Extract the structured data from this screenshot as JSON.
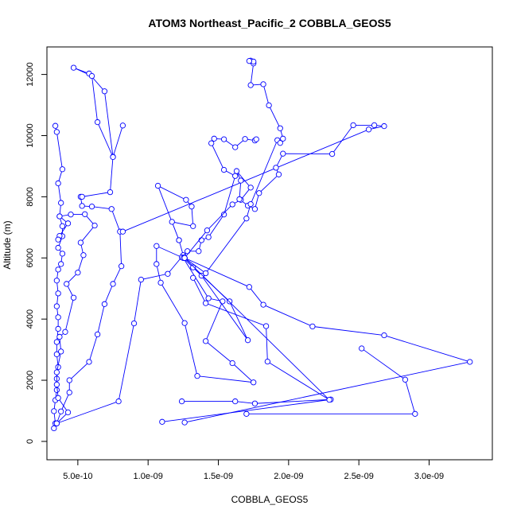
{
  "chart_data": {
    "type": "line",
    "title": "ATOM3 Northeast_Pacific_2 COBBLA_GEOS5",
    "xlabel": "COBBLA_GEOS5",
    "ylabel": "Altitude (m)",
    "xlim": [
      2.8e-10,
      3.45e-09
    ],
    "ylim": [
      -600,
      12900
    ],
    "x_ticks": [
      {
        "value": 5e-10,
        "label": "5.0e-10"
      },
      {
        "value": 1e-09,
        "label": "1.0e-09"
      },
      {
        "value": 1.5e-09,
        "label": "1.5e-09"
      },
      {
        "value": 2e-09,
        "label": "2.0e-09"
      },
      {
        "value": 2.5e-09,
        "label": "2.5e-09"
      },
      {
        "value": 3e-09,
        "label": "3.0e-09"
      }
    ],
    "y_ticks": [
      {
        "value": 0,
        "label": "0"
      },
      {
        "value": 2000,
        "label": "2000"
      },
      {
        "value": 4000,
        "label": "4000"
      },
      {
        "value": 6000,
        "label": "6000"
      },
      {
        "value": 8000,
        "label": "8000"
      },
      {
        "value": 10000,
        "label": "10000"
      },
      {
        "value": 12000,
        "label": "12000"
      }
    ],
    "grid": false,
    "legend": "none",
    "series_color": "#0000ff",
    "series": [
      {
        "points": [
          [
            3.3e-10,
            430
          ],
          [
            3.4e-10,
            590
          ],
          [
            3.3e-10,
            990
          ],
          [
            3.4e-10,
            1350
          ],
          [
            3.5e-10,
            1680
          ],
          [
            3.5e-10,
            2050
          ],
          [
            3.6e-10,
            2430
          ],
          [
            3.5e-10,
            2850
          ],
          [
            3.5e-10,
            3250
          ],
          [
            3.6e-10,
            3680
          ],
          [
            3.6e-10,
            4060
          ],
          [
            3.5e-10,
            4420
          ],
          [
            3.6e-10,
            4840
          ],
          [
            3.5e-10,
            5260
          ],
          [
            3.6e-10,
            5620
          ],
          [
            3.8e-10,
            5800
          ],
          [
            3.9e-10,
            6140
          ],
          [
            3.6e-10,
            6330
          ],
          [
            3.9e-10,
            6710
          ],
          [
            3.9e-10,
            7040
          ],
          [
            3.7e-10,
            7360
          ],
          [
            3.8e-10,
            7800
          ],
          [
            3.6e-10,
            8440
          ],
          [
            3.9e-10,
            8900
          ],
          [
            3.5e-10,
            10120
          ],
          [
            3.4e-10,
            10320
          ]
        ]
      },
      {
        "points": [
          [
            3.5e-10,
            590
          ],
          [
            4.3e-10,
            950
          ],
          [
            3.6e-10,
            1420
          ],
          [
            3.5e-10,
            1860
          ],
          [
            3.5e-10,
            2260
          ],
          [
            3.8e-10,
            2940
          ],
          [
            3.7e-10,
            3420
          ],
          [
            4.1e-10,
            3580
          ],
          [
            4.7e-10,
            4700
          ],
          [
            4.2e-10,
            5150
          ],
          [
            5e-10,
            5520
          ],
          [
            5.4e-10,
            6090
          ],
          [
            5.2e-10,
            6500
          ],
          [
            6.2e-10,
            7060
          ],
          [
            5.5e-10,
            7430
          ],
          [
            4.5e-10,
            7420
          ],
          [
            3.7e-10,
            7360
          ],
          [
            4.3e-10,
            7130
          ],
          [
            3.7e-10,
            6720
          ],
          [
            3.6e-10,
            6600
          ]
        ]
      },
      {
        "points": [
          [
            3.5e-10,
            590
          ],
          [
            3.8e-10,
            980
          ],
          [
            4.4e-10,
            1600
          ],
          [
            4.4e-10,
            2000
          ],
          [
            5.8e-10,
            2600
          ],
          [
            6.4e-10,
            3500
          ],
          [
            6.9e-10,
            4490
          ],
          [
            7.5e-10,
            5150
          ],
          [
            8.1e-10,
            5730
          ],
          [
            8e-10,
            6860
          ],
          [
            7.4e-10,
            7600
          ],
          [
            6e-10,
            7680
          ],
          [
            5.3e-10,
            7700
          ],
          [
            5.2e-10,
            8000
          ],
          [
            5.3e-10,
            8000
          ],
          [
            7.3e-10,
            8150
          ],
          [
            7.5e-10,
            9310
          ],
          [
            6.9e-10,
            11450
          ],
          [
            5.8e-10,
            12030
          ],
          [
            4.7e-10,
            12220
          ],
          [
            6e-10,
            11950
          ],
          [
            6.4e-10,
            10440
          ],
          [
            7.5e-10,
            9300
          ],
          [
            8.2e-10,
            10330
          ]
        ]
      },
      {
        "points": [
          [
            3.5e-10,
            590
          ],
          [
            7.9e-10,
            1310
          ],
          [
            9e-10,
            3860
          ],
          [
            9.5e-10,
            5290
          ],
          [
            1.14e-09,
            5480
          ],
          [
            1.25e-09,
            6090
          ],
          [
            1.22e-09,
            6580
          ],
          [
            1.07e-09,
            8360
          ],
          [
            1.27e-09,
            7900
          ],
          [
            1.31e-09,
            7680
          ],
          [
            1.32e-09,
            7040
          ],
          [
            1.17e-09,
            7180
          ],
          [
            1.22e-09,
            6580
          ]
        ]
      },
      {
        "points": [
          [
            1.25e-09,
            6000
          ],
          [
            1.43e-09,
            4680
          ],
          [
            1.53e-09,
            4580
          ],
          [
            1.41e-09,
            3280
          ],
          [
            1.6e-09,
            2560
          ],
          [
            1.75e-09,
            1930
          ],
          [
            1.35e-09,
            2140
          ],
          [
            1.26e-09,
            3870
          ],
          [
            1.09e-09,
            5190
          ],
          [
            1.06e-09,
            5800
          ],
          [
            1.06e-09,
            6390
          ],
          [
            1.24e-09,
            6020
          ],
          [
            1.28e-09,
            6220
          ],
          [
            1.36e-09,
            6220
          ],
          [
            1.38e-09,
            6580
          ],
          [
            1.43e-09,
            6680
          ],
          [
            1.54e-09,
            7420
          ],
          [
            1.62e-09,
            8680
          ],
          [
            1.54e-09,
            8880
          ],
          [
            1.45e-09,
            9750
          ],
          [
            1.47e-09,
            9900
          ],
          [
            1.54e-09,
            9880
          ],
          [
            1.62e-09,
            9620
          ],
          [
            1.69e-09,
            9890
          ],
          [
            1.76e-09,
            9840
          ],
          [
            1.77e-09,
            9880
          ]
        ]
      },
      {
        "points": [
          [
            1.25e-09,
            6000
          ],
          [
            1.38e-09,
            5420
          ],
          [
            1.71e-09,
            3310
          ],
          [
            1.58e-09,
            4580
          ],
          [
            1.32e-09,
            5690
          ]
        ]
      },
      {
        "points": [
          [
            1.1e-09,
            640
          ],
          [
            2.3e-09,
            1370
          ],
          [
            1.76e-09,
            1240
          ],
          [
            1.62e-09,
            1310
          ],
          [
            1.24e-09,
            1310
          ]
        ]
      },
      {
        "points": [
          [
            1.26e-09,
            6000
          ],
          [
            2.29e-09,
            1360
          ],
          [
            1.85e-09,
            2610
          ],
          [
            1.84e-09,
            3770
          ],
          [
            1.41e-09,
            4520
          ],
          [
            1.32e-09,
            5350
          ]
        ]
      },
      {
        "points": [
          [
            1.7e-09,
            900
          ],
          [
            2.9e-09,
            900
          ],
          [
            2.83e-09,
            2020
          ],
          [
            2.52e-09,
            3040
          ]
        ]
      },
      {
        "points": [
          [
            1.26e-09,
            6000
          ],
          [
            1.72e-09,
            5050
          ],
          [
            1.82e-09,
            4470
          ],
          [
            2.17e-09,
            3760
          ],
          [
            2.68e-09,
            3470
          ],
          [
            3.29e-09,
            2600
          ],
          [
            1.26e-09,
            620
          ]
        ]
      },
      {
        "points": [
          [
            1.26e-09,
            6000
          ],
          [
            1.42e-09,
            6900
          ],
          [
            1.6e-09,
            7750
          ],
          [
            1.66e-09,
            7900
          ],
          [
            1.73e-09,
            8300
          ],
          [
            1.63e-09,
            8840
          ],
          [
            1.66e-09,
            8530
          ],
          [
            1.65e-09,
            7920
          ],
          [
            1.71e-09,
            7710
          ],
          [
            1.76e-09,
            7600
          ],
          [
            1.79e-09,
            8120
          ],
          [
            1.93e-09,
            8730
          ],
          [
            1.91e-09,
            8950
          ],
          [
            1.96e-09,
            9410
          ],
          [
            2.31e-09,
            9400
          ],
          [
            2.46e-09,
            10340
          ],
          [
            2.61e-09,
            10340
          ],
          [
            2.68e-09,
            10310
          ],
          [
            2.57e-09,
            10200
          ],
          [
            8.2e-10,
            6860
          ]
        ]
      },
      {
        "points": [
          [
            1.26e-09,
            6000
          ],
          [
            1.41e-09,
            5500
          ],
          [
            1.7e-09,
            7290
          ],
          [
            1.73e-09,
            7760
          ],
          [
            1.92e-09,
            9850
          ],
          [
            1.94e-09,
            9760
          ],
          [
            1.96e-09,
            9900
          ],
          [
            1.94e-09,
            10240
          ],
          [
            1.86e-09,
            10990
          ],
          [
            1.82e-09,
            11680
          ],
          [
            1.73e-09,
            11650
          ],
          [
            1.75e-09,
            12360
          ],
          [
            1.73e-09,
            12450
          ],
          [
            1.75e-09,
            12420
          ],
          [
            1.72e-09,
            12440
          ]
        ]
      }
    ]
  }
}
